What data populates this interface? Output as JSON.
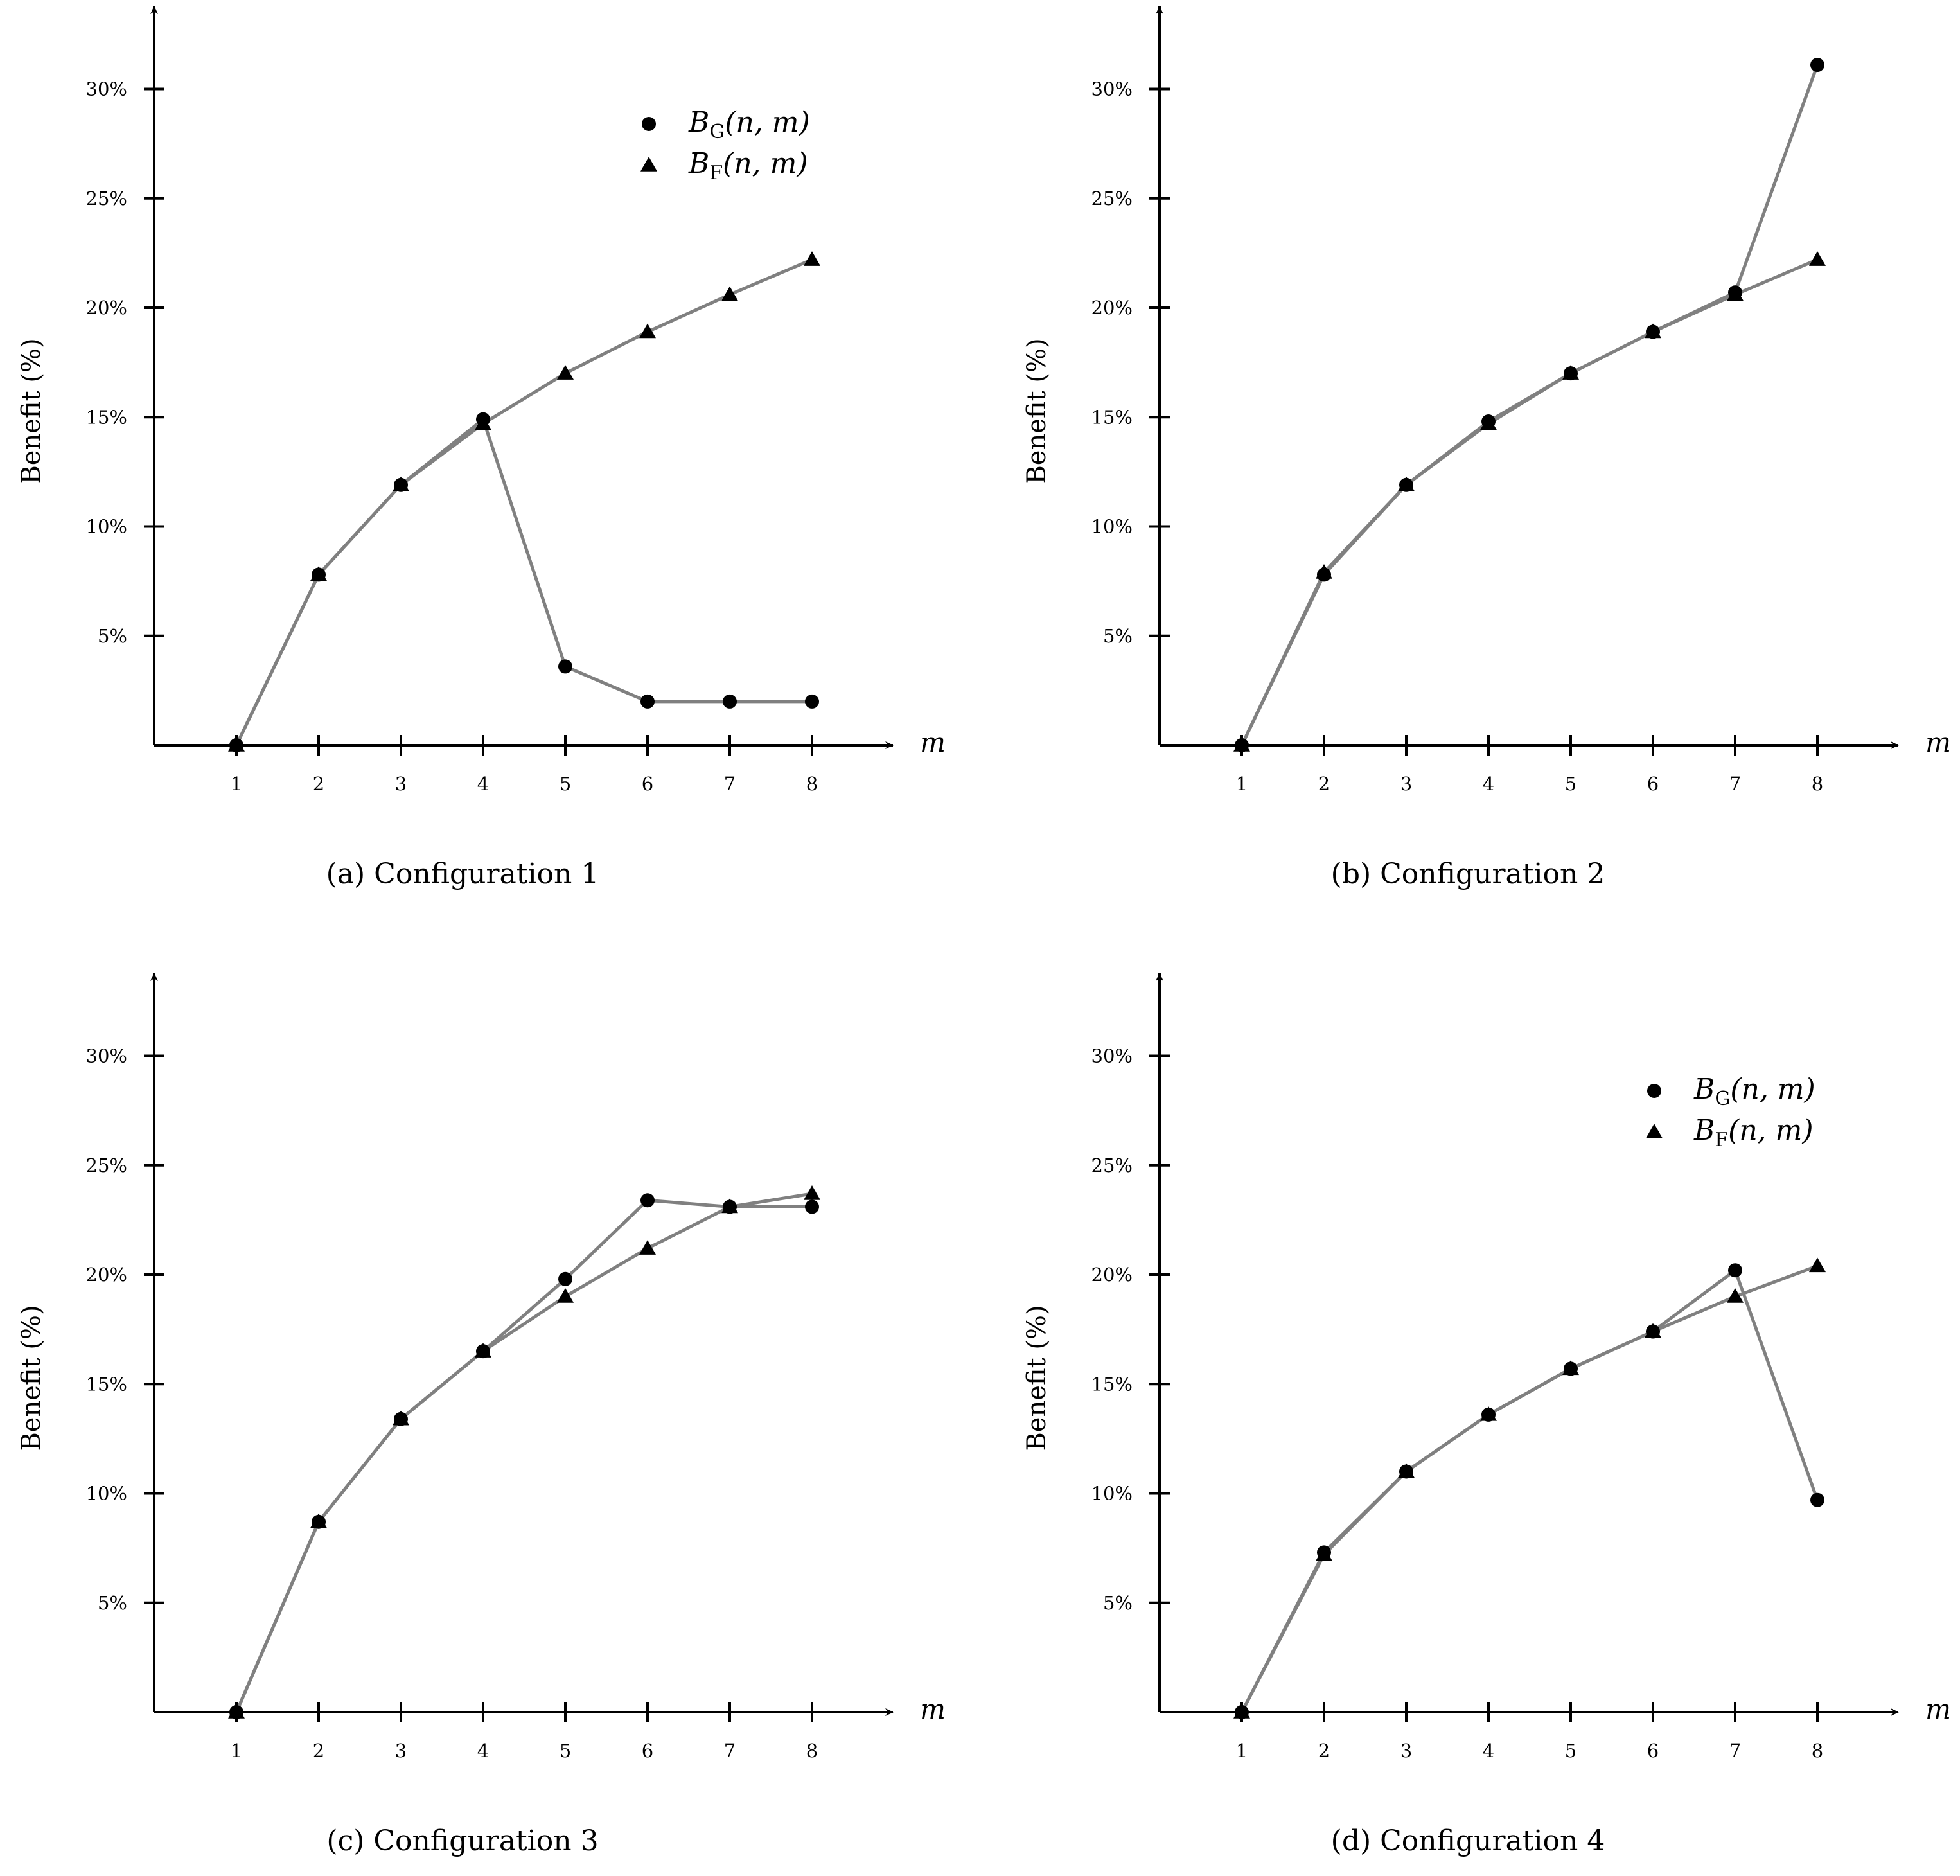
{
  "figure": {
    "y_tick_labels": [
      "5%",
      "10%",
      "15%",
      "20%",
      "25%",
      "30%"
    ],
    "x_tick_labels": [
      "1",
      "2",
      "3",
      "4",
      "5",
      "6",
      "7",
      "8"
    ],
    "ylabel": "Benefit (%)",
    "xlabel": "m",
    "legend_entries": [
      {
        "base": "B",
        "sub": "G",
        "args": "(n, m)",
        "marker": "circle"
      },
      {
        "base": "B",
        "sub": "F",
        "args": "(n, m)",
        "marker": "triangle"
      }
    ],
    "colors": {
      "line": "#808080",
      "marker": "#000000",
      "axis": "#000000"
    }
  },
  "chart_data": [
    {
      "type": "line",
      "caption": "(a) Configuration 1",
      "xlabel": "m",
      "ylabel": "Benefit (%)",
      "xlim": [
        0,
        9
      ],
      "ylim": [
        0,
        33
      ],
      "x": [
        1,
        2,
        3,
        4,
        5,
        6,
        7,
        8
      ],
      "legend": "top-right",
      "series": [
        {
          "name": "BG(n, m)",
          "marker": "circle",
          "values": [
            0,
            7.8,
            11.9,
            14.9,
            3.6,
            2.0,
            2.0,
            2.0
          ]
        },
        {
          "name": "BF(n, m)",
          "marker": "triangle",
          "values": [
            0,
            7.8,
            11.9,
            14.7,
            17.0,
            18.9,
            20.6,
            22.2
          ]
        }
      ]
    },
    {
      "type": "line",
      "caption": "(b) Configuration 2",
      "xlabel": "m",
      "ylabel": "Benefit (%)",
      "xlim": [
        0,
        9
      ],
      "ylim": [
        0,
        33
      ],
      "x": [
        1,
        2,
        3,
        4,
        5,
        6,
        7,
        8
      ],
      "legend": "none",
      "series": [
        {
          "name": "BG(n, m)",
          "marker": "circle",
          "values": [
            0,
            7.8,
            11.9,
            14.8,
            17.0,
            18.9,
            20.7,
            31.1
          ]
        },
        {
          "name": "BF(n, m)",
          "marker": "triangle",
          "values": [
            0,
            7.9,
            11.9,
            14.7,
            17.0,
            18.9,
            20.6,
            22.2
          ]
        }
      ]
    },
    {
      "type": "line",
      "caption": "(c) Configuration 3",
      "xlabel": "m",
      "ylabel": "Benefit (%)",
      "xlim": [
        0,
        9
      ],
      "ylim": [
        0,
        33
      ],
      "x": [
        1,
        2,
        3,
        4,
        5,
        6,
        7,
        8
      ],
      "legend": "none",
      "series": [
        {
          "name": "BG(n, m)",
          "marker": "circle",
          "values": [
            0,
            8.7,
            13.4,
            16.5,
            19.8,
            23.4,
            23.1,
            23.1
          ]
        },
        {
          "name": "BF(n, m)",
          "marker": "triangle",
          "values": [
            0,
            8.7,
            13.4,
            16.5,
            19.0,
            21.2,
            23.1,
            23.7
          ]
        }
      ]
    },
    {
      "type": "line",
      "caption": "(d) Configuration 4",
      "xlabel": "m",
      "ylabel": "Benefit (%)",
      "xlim": [
        0,
        9
      ],
      "ylim": [
        0,
        33
      ],
      "x": [
        1,
        2,
        3,
        4,
        5,
        6,
        7,
        8
      ],
      "legend": "top-right",
      "series": [
        {
          "name": "BG(n, m)",
          "marker": "circle",
          "values": [
            0,
            7.3,
            11.0,
            13.6,
            15.7,
            17.4,
            20.2,
            9.7
          ]
        },
        {
          "name": "BF(n, m)",
          "marker": "triangle",
          "values": [
            0,
            7.2,
            11.0,
            13.6,
            15.7,
            17.4,
            19.0,
            20.4
          ]
        }
      ]
    }
  ]
}
